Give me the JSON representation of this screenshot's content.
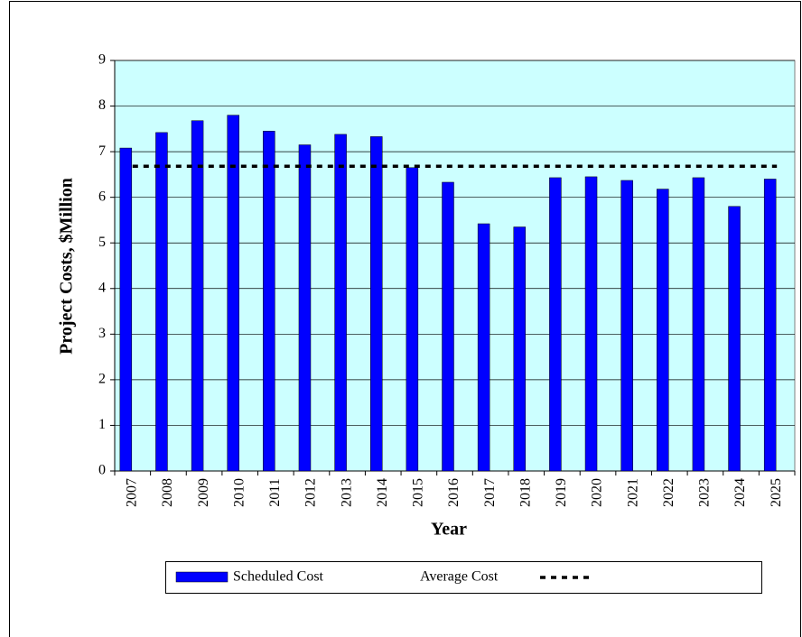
{
  "chart_data": {
    "type": "bar",
    "categories": [
      "2007",
      "2008",
      "2009",
      "2010",
      "2011",
      "2012",
      "2013",
      "2014",
      "2015",
      "2016",
      "2017",
      "2018",
      "2019",
      "2020",
      "2021",
      "2022",
      "2023",
      "2024",
      "2025"
    ],
    "series": [
      {
        "name": "Scheduled Cost",
        "type": "bar",
        "color": "#0000ff",
        "values": [
          7.08,
          7.42,
          7.68,
          7.8,
          7.45,
          7.15,
          7.38,
          7.33,
          6.65,
          6.33,
          5.42,
          5.35,
          6.43,
          6.45,
          6.37,
          6.18,
          6.43,
          5.8,
          6.4
        ]
      },
      {
        "name": "Average Cost",
        "type": "line",
        "color": "#000000",
        "values": [
          6.68,
          6.68,
          6.68,
          6.68,
          6.68,
          6.68,
          6.68,
          6.68,
          6.68,
          6.68,
          6.68,
          6.68,
          6.68,
          6.68,
          6.68,
          6.68,
          6.68,
          6.68,
          6.68
        ]
      }
    ],
    "x_label": "Year",
    "y_label": "Project Costs, $Million",
    "ylim": [
      0,
      9
    ],
    "yticks": [
      0,
      1,
      2,
      3,
      4,
      5,
      6,
      7,
      8,
      9
    ],
    "grid": true,
    "plot_background": "#ccffff"
  }
}
